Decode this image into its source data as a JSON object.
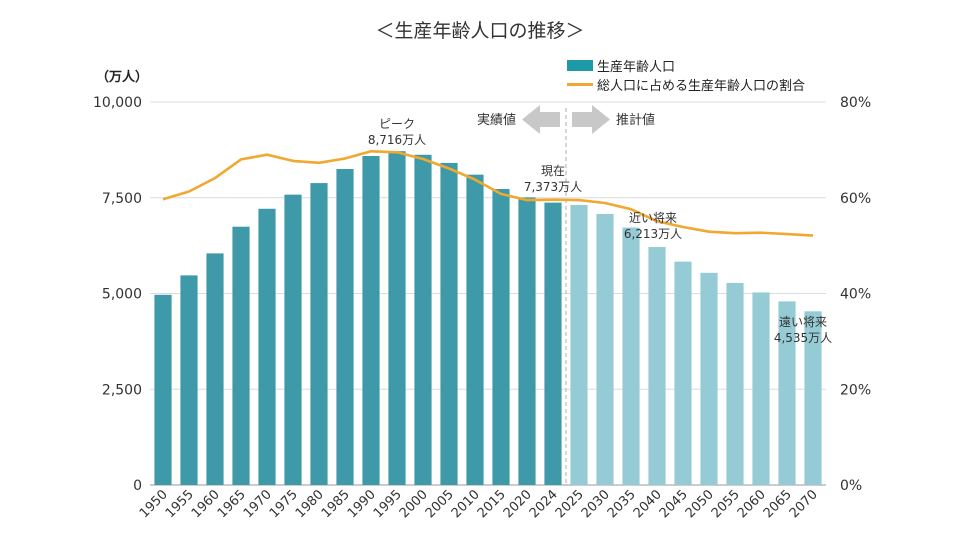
{
  "chart_data": {
    "type": "bar",
    "title": "＜生産年齢人口の推移＞",
    "ylabel": "（万人）",
    "ylim": [
      0,
      10000
    ],
    "y2lim": [
      0,
      80
    ],
    "yticks": [
      "0",
      "2,500",
      "5,000",
      "7,500",
      "10,000"
    ],
    "y2ticks": [
      "0%",
      "20%",
      "40%",
      "60%",
      "80%"
    ],
    "grid": true,
    "legend_position": "top-right",
    "categories": [
      "1950",
      "1955",
      "1960",
      "1965",
      "1970",
      "1975",
      "1980",
      "1985",
      "1990",
      "1995",
      "2000",
      "2005",
      "2010",
      "2015",
      "2020",
      "2024",
      "2025",
      "2030",
      "2035",
      "2040",
      "2045",
      "2050",
      "2055",
      "2060",
      "2065",
      "2070"
    ],
    "series": [
      {
        "name": "生産年齢人口",
        "axis": "left",
        "kind": "bar",
        "color": "#3e9aa8",
        "projected_color": "#95cbd5",
        "values": [
          4966,
          5473,
          6047,
          6744,
          7212,
          7581,
          7883,
          8251,
          8590,
          8716,
          8622,
          8409,
          8103,
          7728,
          7509,
          7373,
          7310,
          7076,
          6722,
          6213,
          5832,
          5540,
          5275,
          5028,
          4794,
          4535
        ]
      },
      {
        "name": "総人口に占める生産年齢人口の割合",
        "axis": "right",
        "kind": "line",
        "color": "#f0a830",
        "values": [
          59.7,
          61.3,
          64.1,
          68.0,
          69.0,
          67.7,
          67.3,
          68.2,
          69.7,
          69.5,
          68.1,
          66.1,
          63.8,
          60.8,
          59.5,
          59.6,
          59.5,
          58.9,
          57.6,
          55.1,
          53.9,
          52.9,
          52.6,
          52.7,
          52.4,
          52.1
        ]
      }
    ],
    "projection_start_index": 16,
    "legend_bar_label": "生産年齢人口",
    "legend_line_label": "総人口に占める生産年齢人口の割合",
    "actual_label": "実績値",
    "estimate_label": "推計値",
    "annotations": [
      {
        "line1": "ピーク",
        "line2": "8,716万人",
        "category": "1995"
      },
      {
        "line1": "現在",
        "line2": "7,373万人",
        "category": "2024"
      },
      {
        "line1": "近い将来",
        "line2": "6,213万人",
        "category": "2040"
      },
      {
        "line1": "遠い将来",
        "line2": "4,535万人",
        "category": "2070"
      }
    ]
  }
}
